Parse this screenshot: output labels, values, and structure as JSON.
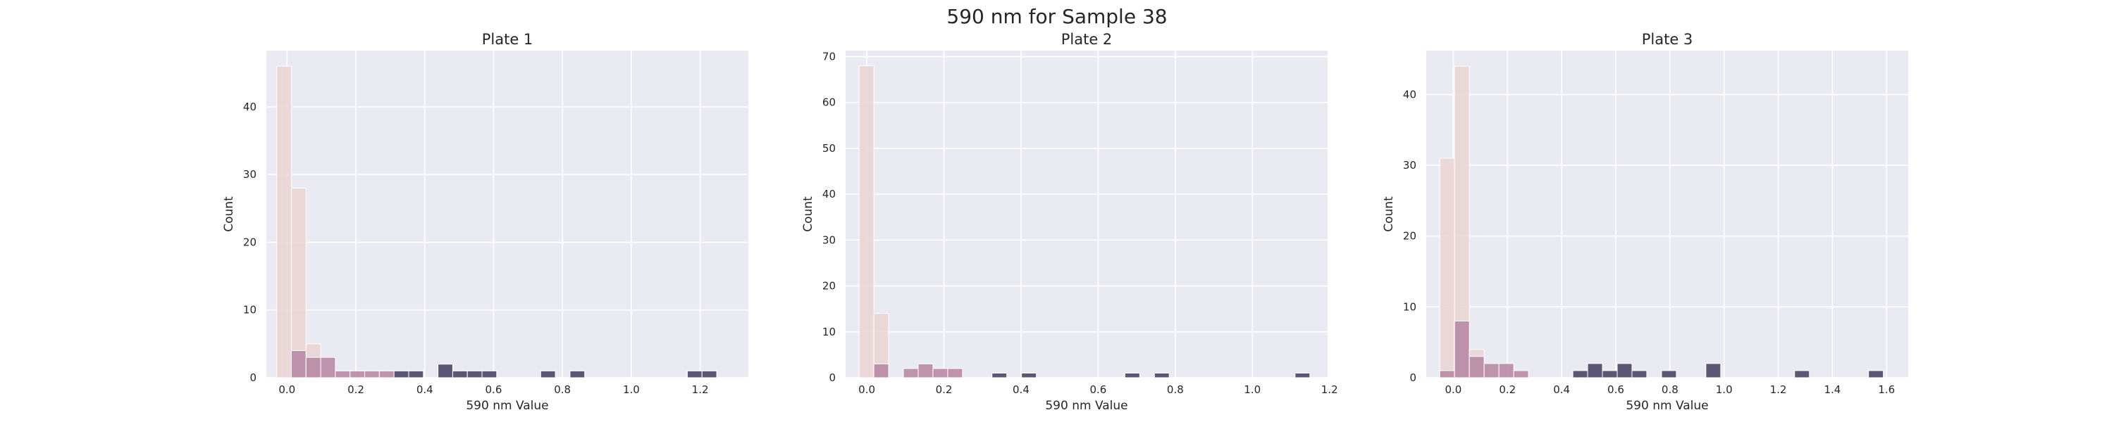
{
  "figure": {
    "suptitle": "590 nm for Sample 38"
  },
  "colors": {
    "background": "#eaeaf2",
    "grid": "#ffffff",
    "bar_palette": [
      "#ead5d3",
      "#b98aa6",
      "#4e4566"
    ]
  },
  "chart_data": [
    {
      "type": "bar",
      "title": "Plate 1",
      "xlabel": "590 nm Value",
      "ylabel": "Count",
      "xlim": [
        -0.06,
        1.34
      ],
      "ylim": [
        0,
        48.3
      ],
      "xticks": [
        0.0,
        0.2,
        0.4,
        0.6,
        0.8,
        1.0,
        1.2
      ],
      "xtick_labels": [
        "0.0",
        "0.2",
        "0.4",
        "0.6",
        "0.8",
        "1.0",
        "1.2"
      ],
      "yticks": [
        0,
        10,
        20,
        30,
        40
      ],
      "ytick_labels": [
        "0",
        "10",
        "20",
        "30",
        "40"
      ],
      "grid": true,
      "legend": "none",
      "bin_width": 0.0426,
      "bars": [
        {
          "x0": -0.03,
          "count": 46,
          "shade": 0
        },
        {
          "x0": 0.0126,
          "count": 28,
          "shade": 0
        },
        {
          "x0": 0.0126,
          "count": 4,
          "shade": 1
        },
        {
          "x0": 0.0552,
          "count": 5,
          "shade": 0
        },
        {
          "x0": 0.0552,
          "count": 3,
          "shade": 1
        },
        {
          "x0": 0.0978,
          "count": 3,
          "shade": 1
        },
        {
          "x0": 0.1404,
          "count": 1,
          "shade": 1
        },
        {
          "x0": 0.183,
          "count": 1,
          "shade": 1
        },
        {
          "x0": 0.2256,
          "count": 1,
          "shade": 1
        },
        {
          "x0": 0.2682,
          "count": 1,
          "shade": 1
        },
        {
          "x0": 0.3108,
          "count": 1,
          "shade": 2
        },
        {
          "x0": 0.3534,
          "count": 1,
          "shade": 2
        },
        {
          "x0": 0.4386,
          "count": 2,
          "shade": 2
        },
        {
          "x0": 0.4812,
          "count": 1,
          "shade": 2
        },
        {
          "x0": 0.5238,
          "count": 1,
          "shade": 2
        },
        {
          "x0": 0.5664,
          "count": 1,
          "shade": 2
        },
        {
          "x0": 0.7368,
          "count": 1,
          "shade": 2
        },
        {
          "x0": 0.822,
          "count": 1,
          "shade": 2
        },
        {
          "x0": 1.1628,
          "count": 1,
          "shade": 2
        },
        {
          "x0": 1.2054,
          "count": 1,
          "shade": 2
        }
      ]
    },
    {
      "type": "bar",
      "title": "Plate 2",
      "xlabel": "590 nm Value",
      "ylabel": "Count",
      "xlim": [
        -0.055,
        1.195
      ],
      "ylim": [
        0,
        71.3
      ],
      "xticks": [
        0.0,
        0.2,
        0.4,
        0.6,
        0.8,
        1.0,
        1.2
      ],
      "xtick_labels": [
        "0.0",
        "0.2",
        "0.4",
        "0.6",
        "0.8",
        "1.0",
        "1.2"
      ],
      "yticks": [
        0,
        10,
        20,
        30,
        40,
        50,
        60,
        70
      ],
      "ytick_labels": [
        "0",
        "10",
        "20",
        "30",
        "40",
        "50",
        "60",
        "70"
      ],
      "grid": true,
      "legend": "none",
      "bin_width": 0.0383,
      "bars": [
        {
          "x0": -0.02,
          "count": 68,
          "shade": 0
        },
        {
          "x0": 0.0183,
          "count": 14,
          "shade": 0
        },
        {
          "x0": 0.0183,
          "count": 3,
          "shade": 1
        },
        {
          "x0": 0.0949,
          "count": 2,
          "shade": 1
        },
        {
          "x0": 0.1332,
          "count": 3,
          "shade": 1
        },
        {
          "x0": 0.1715,
          "count": 2,
          "shade": 1
        },
        {
          "x0": 0.2098,
          "count": 2,
          "shade": 1
        },
        {
          "x0": 0.3247,
          "count": 1,
          "shade": 2
        },
        {
          "x0": 0.4013,
          "count": 1,
          "shade": 2
        },
        {
          "x0": 0.6694,
          "count": 1,
          "shade": 2
        },
        {
          "x0": 0.746,
          "count": 1,
          "shade": 2
        },
        {
          "x0": 1.1107,
          "count": 1,
          "shade": 2
        }
      ]
    },
    {
      "type": "bar",
      "title": "Plate 3",
      "xlabel": "590 nm Value",
      "ylabel": "Count",
      "xlim": [
        -0.1,
        1.68
      ],
      "ylim": [
        0,
        46.2
      ],
      "xticks": [
        0.0,
        0.2,
        0.4,
        0.6,
        0.8,
        1.0,
        1.2,
        1.4,
        1.6
      ],
      "xtick_labels": [
        "0.0",
        "0.2",
        "0.4",
        "0.6",
        "0.8",
        "1.0",
        "1.2",
        "1.4",
        "1.6"
      ],
      "yticks": [
        0,
        10,
        20,
        30,
        40
      ],
      "ytick_labels": [
        "0",
        "10",
        "20",
        "30",
        "40"
      ],
      "grid": true,
      "legend": "none",
      "bin_width": 0.0546,
      "bars": [
        {
          "x0": -0.05,
          "count": 31,
          "shade": 0
        },
        {
          "x0": -0.05,
          "count": 1,
          "shade": 1
        },
        {
          "x0": 0.0046,
          "count": 44,
          "shade": 0
        },
        {
          "x0": 0.0046,
          "count": 8,
          "shade": 1
        },
        {
          "x0": 0.0592,
          "count": 4,
          "shade": 0
        },
        {
          "x0": 0.0592,
          "count": 3,
          "shade": 1
        },
        {
          "x0": 0.1138,
          "count": 2,
          "shade": 1
        },
        {
          "x0": 0.1684,
          "count": 2,
          "shade": 1
        },
        {
          "x0": 0.223,
          "count": 1,
          "shade": 1
        },
        {
          "x0": 0.4414,
          "count": 1,
          "shade": 2
        },
        {
          "x0": 0.496,
          "count": 2,
          "shade": 2
        },
        {
          "x0": 0.5506,
          "count": 1,
          "shade": 2
        },
        {
          "x0": 0.6052,
          "count": 2,
          "shade": 2
        },
        {
          "x0": 0.6598,
          "count": 1,
          "shade": 2
        },
        {
          "x0": 0.769,
          "count": 1,
          "shade": 2
        },
        {
          "x0": 0.9328,
          "count": 2,
          "shade": 2
        },
        {
          "x0": 1.2604,
          "count": 1,
          "shade": 2
        },
        {
          "x0": 1.5334,
          "count": 1,
          "shade": 2
        }
      ]
    }
  ]
}
